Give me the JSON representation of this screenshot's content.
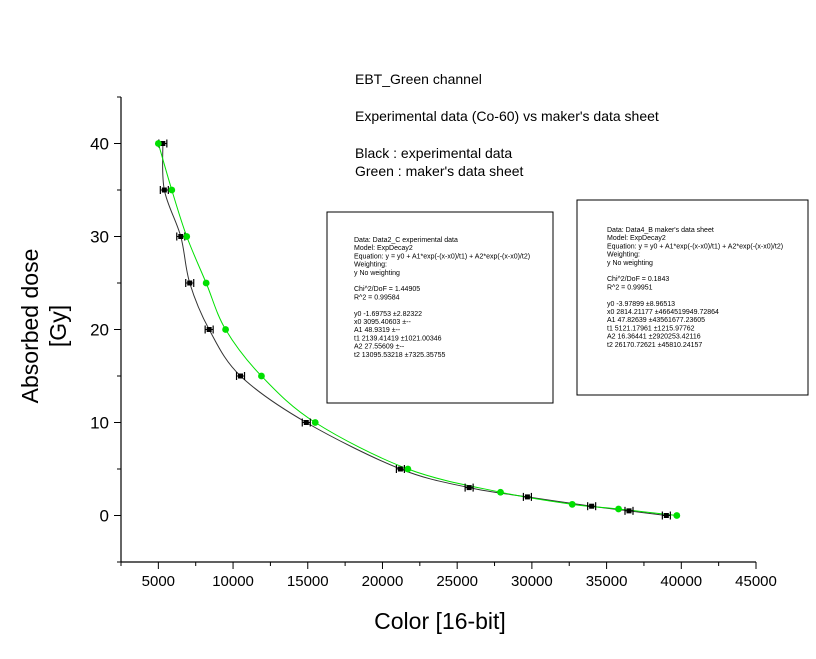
{
  "chart_data": {
    "type": "scatter",
    "xlabel": "Color [16-bit]",
    "ylabel_lines": [
      "Absorbed dose",
      "[Gy]"
    ],
    "xlim": [
      2500,
      45000
    ],
    "ylim": [
      -5,
      45
    ],
    "x_ticks": [
      5000,
      10000,
      15000,
      20000,
      25000,
      30000,
      35000,
      40000,
      45000
    ],
    "y_ticks": [
      0,
      10,
      20,
      30,
      40
    ],
    "annotations": [
      "EBT_Green channel",
      "Experimental data (Co-60) vs maker's data sheet",
      "Black : experimental data",
      "Green : maker's data sheet"
    ],
    "series": [
      {
        "color": "#000000",
        "marker": "error-bar-square",
        "x": [
          5300,
          5400,
          6500,
          7100,
          8400,
          10500,
          14900,
          21200,
          25800,
          29700,
          34000,
          36500,
          39000
        ],
        "y": [
          40,
          35,
          30,
          25,
          20,
          15,
          10,
          5,
          3,
          2,
          1,
          0.5,
          0
        ]
      },
      {
        "color": "#00e000",
        "marker": "circle",
        "x": [
          5000,
          5900,
          6900,
          8200,
          9500,
          11900,
          15500,
          21700,
          27900,
          32700,
          35800,
          39700
        ],
        "y": [
          40,
          35,
          30,
          25,
          20,
          15,
          10,
          5,
          2.5,
          1.2,
          0.7,
          0
        ]
      }
    ],
    "fit_boxes": [
      {
        "lines": [
          "Data: Data2_C experimental data",
          "Model: ExpDecay2",
          "Equation: y = y0 + A1*exp(-(x-x0)/t1) + A2*exp(-(x-x0)/t2)",
          "Weighting:",
          "y        No weighting",
          "",
          "Chi^2/DoF      = 1.44905",
          "R^2     = 0.99584",
          "",
          "y0      -1.69753        ±2.82322",
          "x0      3095.40603      ±--",
          "A1      48.9319         ±--",
          "t1      2139.41419      ±1021.00346",
          "A2      27.55609        ±--",
          "t2      13095.53218     ±7325.35755"
        ]
      },
      {
        "lines": [
          "Data: Data4_B maker's data sheet",
          "Model: ExpDecay2",
          "Equation: y = y0 + A1*exp(-(x-x0)/t1) + A2*exp(-(x-x0)/t2)",
          "Weighting:",
          "y        No weighting",
          "",
          "Chi^2/DoF      = 0.1843",
          "R^2     = 0.99951",
          "",
          "y0      -3.97899        ±8.96513",
          "x0      2814.21177      ±4664519949.72864",
          "A1      47.82639        ±43561677.23605",
          "t1      5121.17961      ±1215.97762",
          "A2      16.36441        ±2920253.42116",
          "t2      26170.72621     ±45810.24157"
        ]
      }
    ]
  }
}
